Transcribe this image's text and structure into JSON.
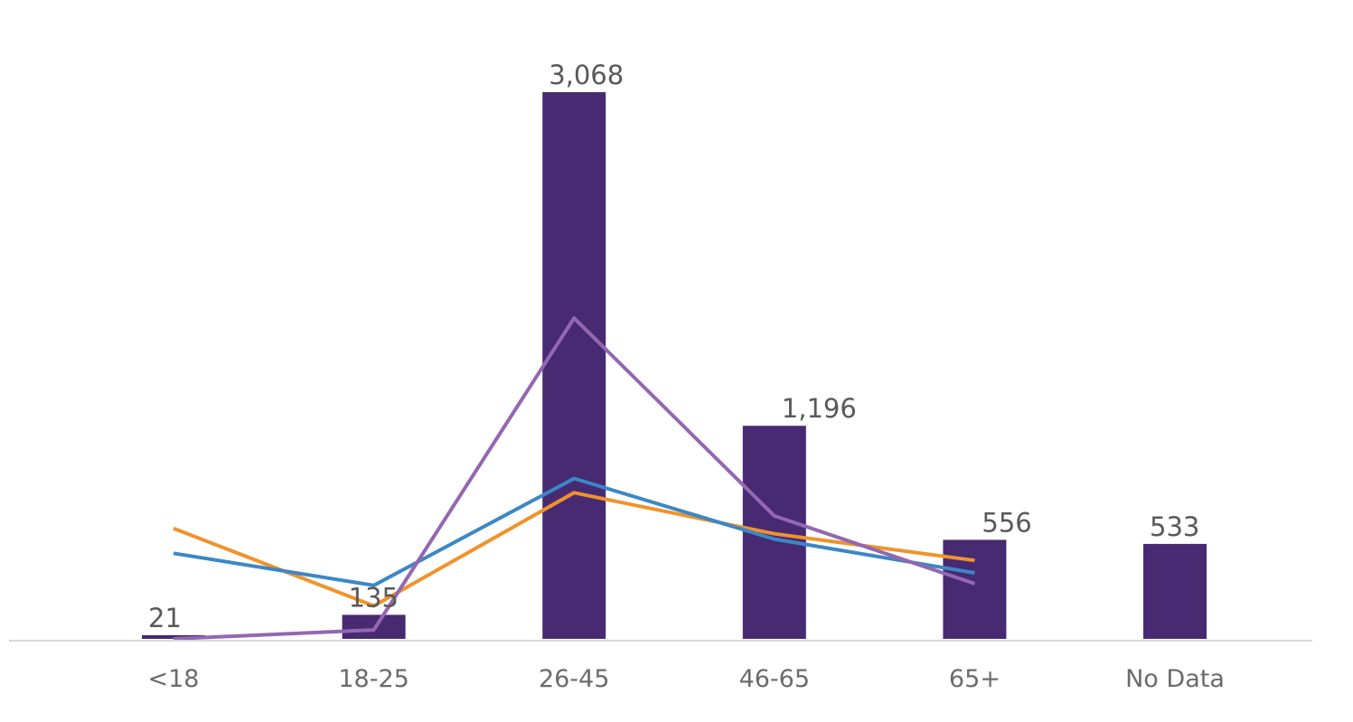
{
  "chart_data": {
    "type": "bar",
    "categories": [
      "<18",
      "18-25",
      "26-45",
      "46-65",
      "65+",
      "No Data"
    ],
    "values": [
      21,
      135,
      3068,
      1196,
      556,
      533
    ],
    "value_labels": [
      "21",
      "135",
      "3,068",
      "1,196",
      "556",
      "533"
    ],
    "bar_color": "#472A72",
    "ylim": [
      0,
      3300
    ],
    "grid": false,
    "legend": "none",
    "overlay_lines": [
      {
        "color": "#F0932B",
        "values": [
          620,
          185,
          820,
          590,
          440
        ]
      },
      {
        "color": "#3C87C6",
        "values": [
          480,
          300,
          900,
          560,
          370
        ]
      },
      {
        "color": "#9467B1",
        "values": [
          0,
          50,
          1800,
          690,
          310
        ]
      }
    ]
  }
}
